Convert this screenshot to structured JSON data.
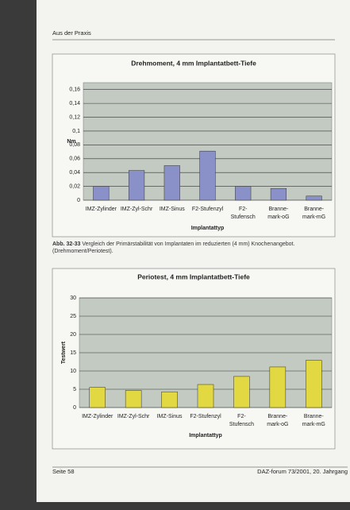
{
  "header": {
    "section": "Aus der Praxis"
  },
  "chart_data": [
    {
      "type": "bar",
      "title": "Drehmoment, 4 mm Implantatbett-Tiefe",
      "y_label": "Nm",
      "x_label": "Implantattyp",
      "categories": [
        "IMZ-Zylinder",
        "IMZ-Zyl-Schr",
        "IMZ-Sinus",
        "F2-Stufenzyl",
        "F2-\nStufensch",
        "Branne-\nmark-oG",
        "Branne-\nmark-mG"
      ],
      "values": [
        0.02,
        0.043,
        0.05,
        0.071,
        0.02,
        0.017,
        0.006
      ],
      "color": "#8a90c8",
      "ylim": [
        0,
        0.17
      ],
      "yticks": [
        0,
        {
          "value": 0.02,
          "label": "0,02"
        },
        {
          "value": 0.04,
          "label": "0,04"
        },
        {
          "value": 0.06,
          "label": "0,06"
        },
        {
          "value": 0.08,
          "label": "0,08"
        },
        {
          "value": 0.1,
          "label": "0,1"
        },
        {
          "value": 0.12,
          "label": "0,12"
        },
        {
          "value": 0.14,
          "label": "0,14"
        },
        {
          "value": 0.16,
          "label": "0,16"
        }
      ],
      "grid": true
    },
    {
      "type": "bar",
      "title": "Periotest, 4 mm Implantatbett-Tiefe",
      "y_label": "Testwert",
      "x_label": "Implantattyp",
      "categories": [
        "IMZ-Zylinder",
        "IMZ-Zyl-Schr",
        "IMZ-Sinus",
        "F2-Stufenzyl",
        "F2-\nStufensch",
        "Branne-\nmark-oG",
        "Branne-\nmark-mG"
      ],
      "values": [
        5.5,
        4.7,
        4.3,
        6.3,
        8.5,
        11.1,
        12.9
      ],
      "color": "#e2d842",
      "ylim": [
        0,
        30
      ],
      "yticks": [
        0,
        5,
        10,
        15,
        20,
        25,
        30
      ],
      "grid": true
    }
  ],
  "caption": {
    "label": "Abb. 32-33",
    "text": "Vergleich der Primärstabilität von Implantaten im reduzierten (4 mm) Knochenangebot. (Drehmoment/Periotest)."
  },
  "footer": {
    "page": "Seite 58",
    "journal": "DAZ-forum 73/2001, 20. Jahrgang"
  }
}
